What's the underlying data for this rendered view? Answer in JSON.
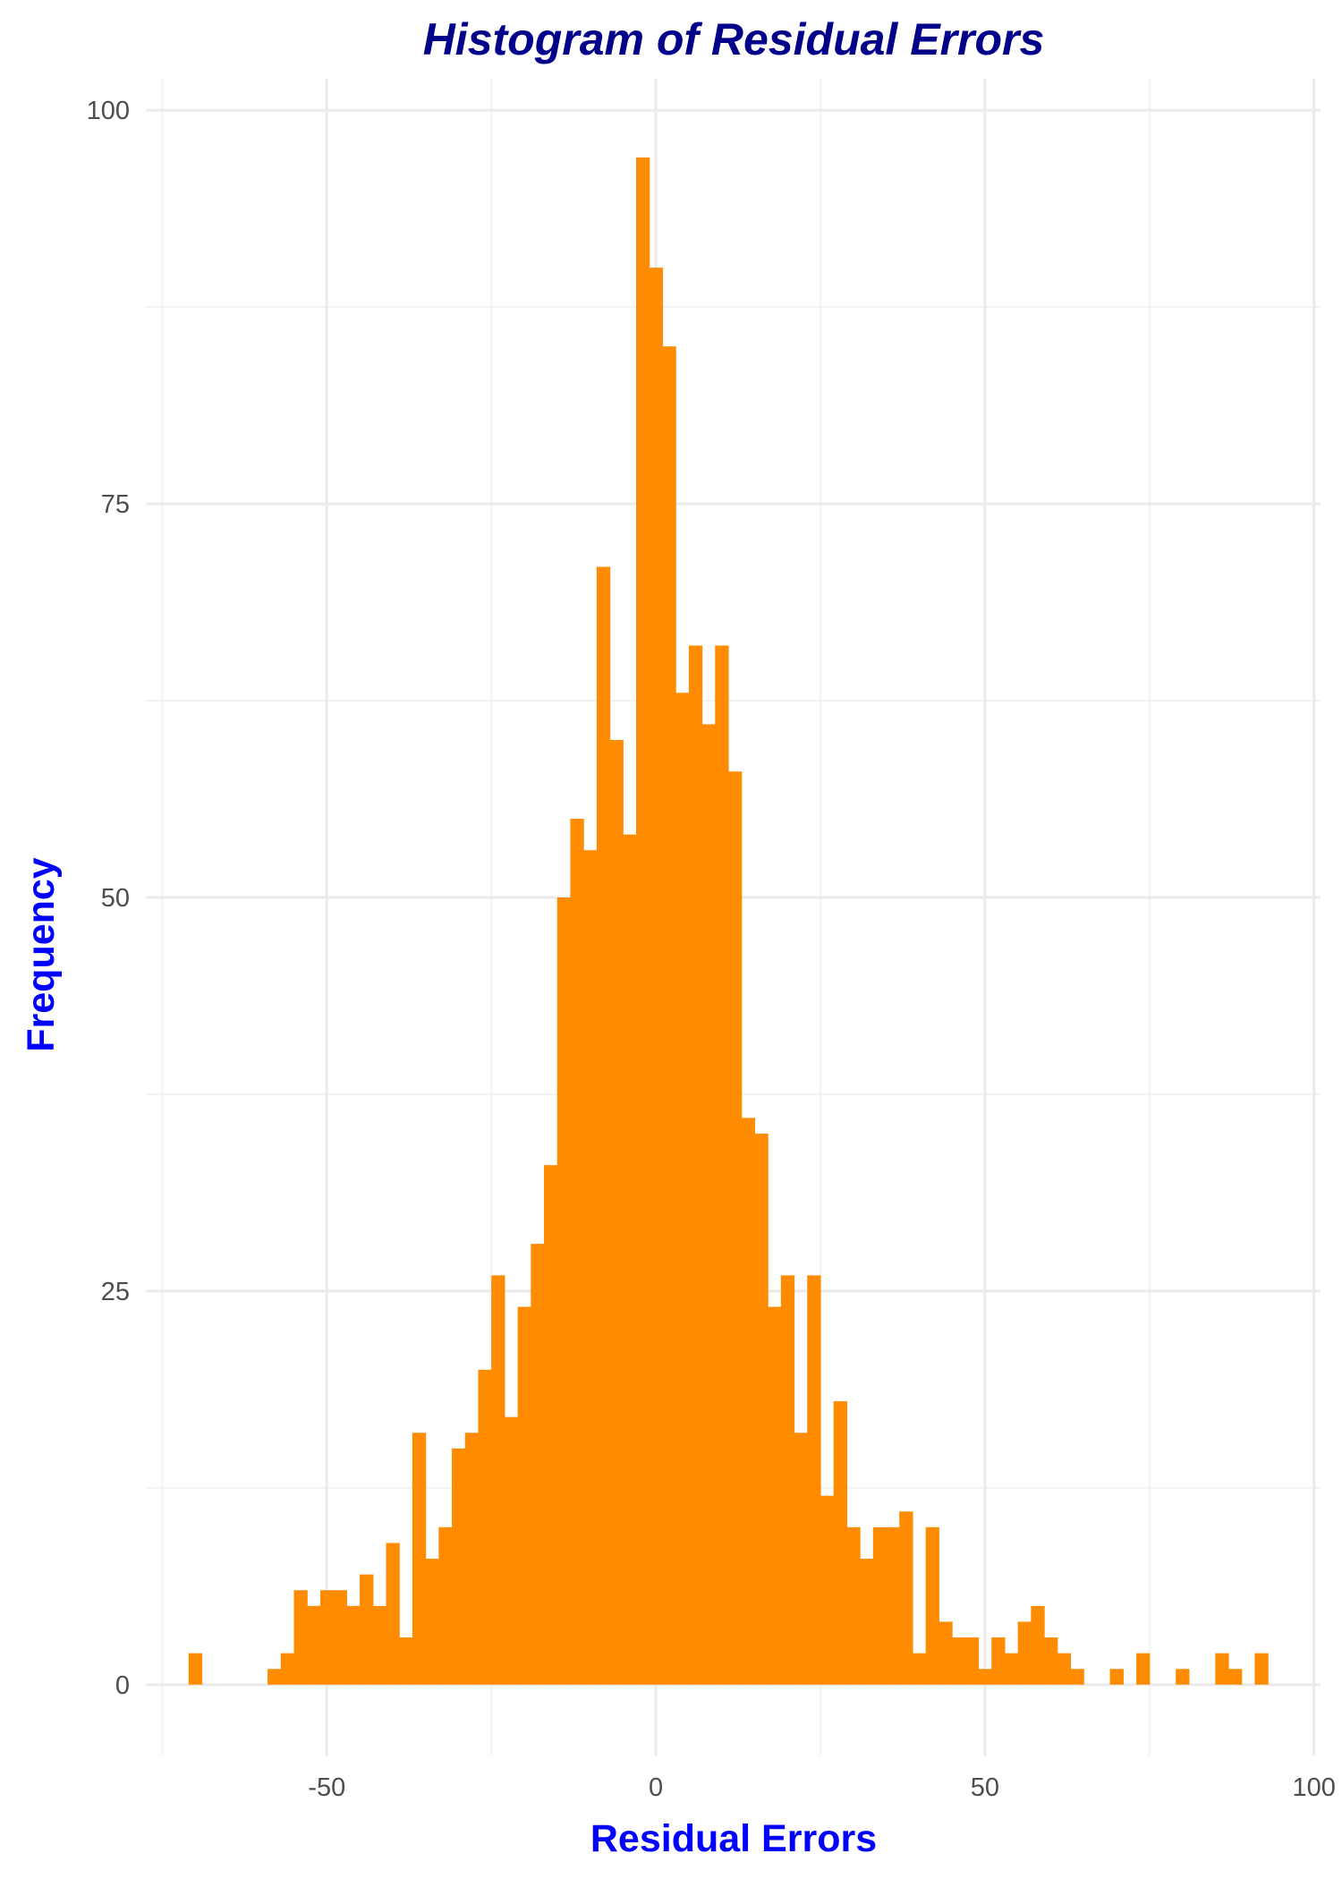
{
  "chart_data": {
    "type": "bar",
    "title": "Histogram of Residual Errors",
    "xlabel": "Residual Errors",
    "ylabel": "Frequency",
    "xlim": [
      -77.5,
      101
    ],
    "ylim": [
      -4.5,
      102
    ],
    "x_ticks": [
      -50,
      0,
      50,
      100
    ],
    "y_ticks": [
      0,
      25,
      50,
      75,
      100
    ],
    "bin_width": 2,
    "bar_color": "#FF8C00",
    "title_color": "#00008B",
    "axis_title_color": "#0000FF",
    "grid": true,
    "legend": "none",
    "bins": [
      {
        "x": -70,
        "count": 2
      },
      {
        "x": -58,
        "count": 1
      },
      {
        "x": -56,
        "count": 2
      },
      {
        "x": -54,
        "count": 6
      },
      {
        "x": -52,
        "count": 5
      },
      {
        "x": -50,
        "count": 6
      },
      {
        "x": -48,
        "count": 6
      },
      {
        "x": -46,
        "count": 5
      },
      {
        "x": -44,
        "count": 7
      },
      {
        "x": -42,
        "count": 5
      },
      {
        "x": -40,
        "count": 9
      },
      {
        "x": -38,
        "count": 3
      },
      {
        "x": -36,
        "count": 16
      },
      {
        "x": -34,
        "count": 8
      },
      {
        "x": -32,
        "count": 10
      },
      {
        "x": -30,
        "count": 15
      },
      {
        "x": -28,
        "count": 16
      },
      {
        "x": -26,
        "count": 20
      },
      {
        "x": -24,
        "count": 26
      },
      {
        "x": -22,
        "count": 17
      },
      {
        "x": -20,
        "count": 24
      },
      {
        "x": -18,
        "count": 28
      },
      {
        "x": -16,
        "count": 33
      },
      {
        "x": -14,
        "count": 50
      },
      {
        "x": -12,
        "count": 55
      },
      {
        "x": -10,
        "count": 53
      },
      {
        "x": -8,
        "count": 71
      },
      {
        "x": -6,
        "count": 60
      },
      {
        "x": -4,
        "count": 54
      },
      {
        "x": -2,
        "count": 97
      },
      {
        "x": 0,
        "count": 90
      },
      {
        "x": 2,
        "count": 85
      },
      {
        "x": 4,
        "count": 63
      },
      {
        "x": 6,
        "count": 66
      },
      {
        "x": 8,
        "count": 61
      },
      {
        "x": 10,
        "count": 66
      },
      {
        "x": 12,
        "count": 58
      },
      {
        "x": 14,
        "count": 36
      },
      {
        "x": 16,
        "count": 35
      },
      {
        "x": 18,
        "count": 24
      },
      {
        "x": 20,
        "count": 26
      },
      {
        "x": 22,
        "count": 16
      },
      {
        "x": 24,
        "count": 26
      },
      {
        "x": 26,
        "count": 12
      },
      {
        "x": 28,
        "count": 18
      },
      {
        "x": 30,
        "count": 10
      },
      {
        "x": 32,
        "count": 8
      },
      {
        "x": 34,
        "count": 10
      },
      {
        "x": 36,
        "count": 10
      },
      {
        "x": 38,
        "count": 11
      },
      {
        "x": 40,
        "count": 2
      },
      {
        "x": 42,
        "count": 10
      },
      {
        "x": 44,
        "count": 4
      },
      {
        "x": 46,
        "count": 3
      },
      {
        "x": 48,
        "count": 3
      },
      {
        "x": 50,
        "count": 1
      },
      {
        "x": 52,
        "count": 3
      },
      {
        "x": 54,
        "count": 2
      },
      {
        "x": 56,
        "count": 4
      },
      {
        "x": 58,
        "count": 5
      },
      {
        "x": 60,
        "count": 3
      },
      {
        "x": 62,
        "count": 2
      },
      {
        "x": 64,
        "count": 1
      },
      {
        "x": 70,
        "count": 1
      },
      {
        "x": 74,
        "count": 2
      },
      {
        "x": 80,
        "count": 1
      },
      {
        "x": 86,
        "count": 2
      },
      {
        "x": 88,
        "count": 1
      },
      {
        "x": 92,
        "count": 2
      }
    ]
  }
}
